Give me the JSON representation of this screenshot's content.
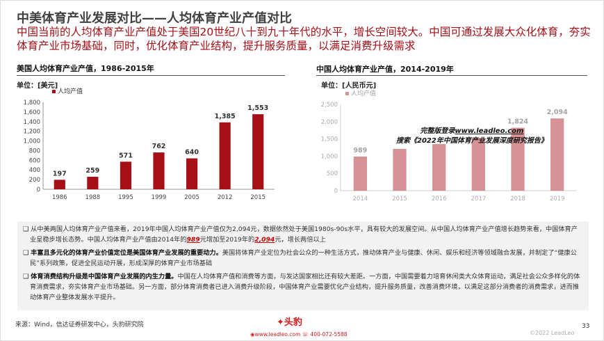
{
  "header": {
    "title": "中美体育产业发展对比——人均体育产业产值对比",
    "subtitle": "中国当前的人均体育产业产值处于美国20世纪八十到九十年代的水平，增长空间较大。中国可通过发展大众化体育，夯实体育产业市场基础，同时，优化体育产业结构，提升服务质量，以满足消费升级需求"
  },
  "chart_data": [
    {
      "type": "bar",
      "title": "美国人均体育产业产值，1986-2015年",
      "unit": "单位：[美元]",
      "legend": "人均产值",
      "categories": [
        "1986",
        "1988",
        "1995",
        "1999",
        "2005",
        "2012",
        "2015"
      ],
      "values": [
        197,
        259,
        571,
        762,
        640,
        1385,
        1553
      ],
      "labels": [
        "197",
        "259",
        "571",
        "762",
        "640",
        "1,385",
        "1,553"
      ],
      "ylim": [
        0,
        1800
      ],
      "yticks": [
        "0",
        "200",
        "400",
        "600",
        "800",
        "1,000",
        "1,200",
        "1,400",
        "1,600",
        "1,800"
      ],
      "color": "#a50f15"
    },
    {
      "type": "bar",
      "title": "中国人均体育产业产值，2014-2019年",
      "unit": "单位：[人民币元]",
      "legend": "人均产值",
      "categories": [
        "2014",
        "2015",
        "2016",
        "2017",
        "2018",
        "2019"
      ],
      "values": [
        989,
        1210,
        1350,
        1530,
        1824,
        2094
      ],
      "labels": [
        "989",
        "",
        "",
        "",
        "1,824",
        "2,094"
      ],
      "ylim": [
        0,
        2500
      ],
      "yticks": [
        "0",
        "500",
        "1,000",
        "1,500",
        "2,000",
        "2,500"
      ],
      "color": "#a50f15",
      "blurred": true
    }
  ],
  "watermark": {
    "line1_prefix": "完整版登录",
    "line1_link": "www.leadleo.com",
    "line2": "搜索《2022年中国体育产业发展深度研究报告》"
  },
  "bullets": [
    {
      "bold": "",
      "text1": "从中美两国人均体育产业产值来看，2019年中国人均体育产业产值仅为2,094元，数据依然处于美国1980s-90s水平，具有较大的发展空间。从中国人均体育产业产值增长趋势来看，中国体育产业呈稳步增长态势。中国人均体育产业产值由2014年的",
      "hl1": "989",
      "text2": "元增加至2019年的",
      "hl2": "2,094",
      "text3": "元，增长两倍以上"
    },
    {
      "bold": "丰富且多元化的体育产业价值定位是美国体育产业发展的重要动力。",
      "text1": "美国将体育产业定位为社会公众的一种生活方式，推动体育产业与健康、休闲、娱乐和经济等领域融合发展，并制定了“健康公民”系列政策，促进全民运动开展，形成深厚的体育产业市场基础"
    },
    {
      "bold": "体育消费结构升级是中国体育产业发展的内生力量。",
      "text1": "中国在人均体育产值和消费等方面，与发达国家相比还有较大差距。一方面，中国需要着力培育休闲类大众体育运动，满足社会公众多样化的体育消费需求，夯实体育产业市场基础。另一方面，部分体育消费者已进入消费升级阶段，中国体育产业需要优化产业结构，提升服务质量，改善消费环境，以满足这部分消费者的消费需求，进而推动体育产业整体发展水平提升。"
    }
  ],
  "footer": {
    "source": "来源：Wind，信达证券研发中心，头豹研究院",
    "page": "33",
    "copyright": "©2022 LeadLeo",
    "logo_text": "头豹",
    "website": "www.leadleo.com",
    "phone": "400-072-5588"
  }
}
